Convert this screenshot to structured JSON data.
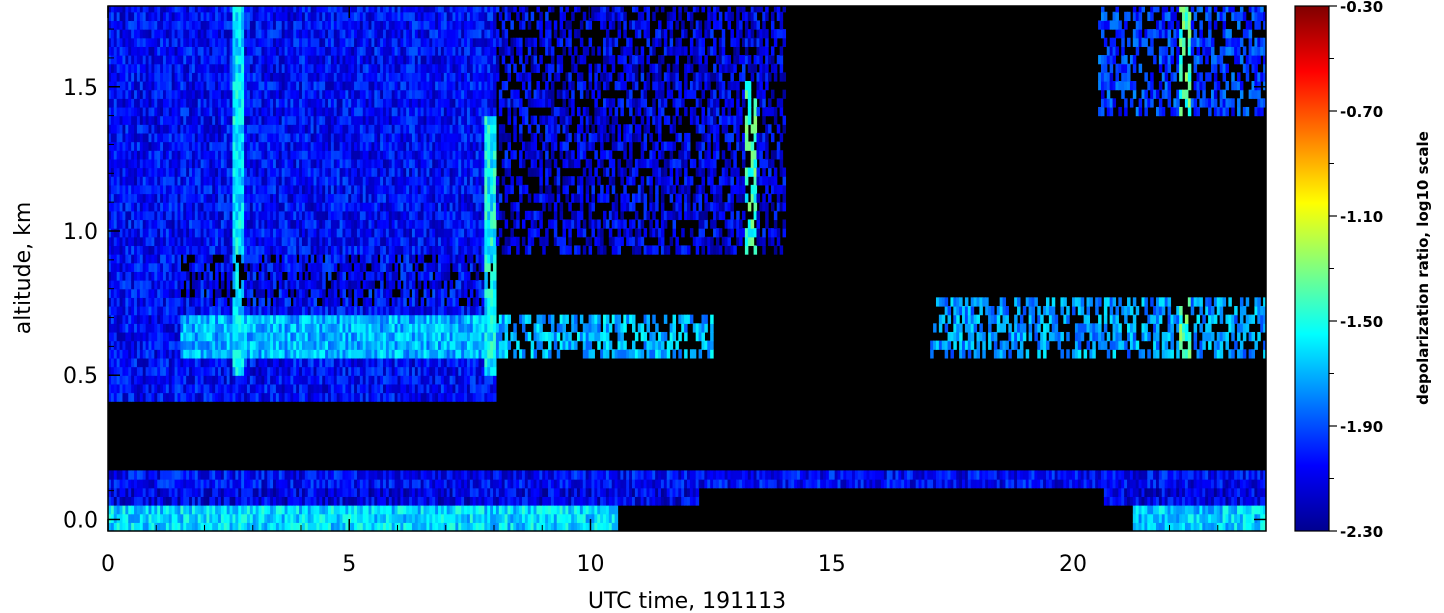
{
  "chart_data": {
    "type": "heatmap",
    "title": "",
    "xlabel": "UTC time, 191113",
    "ylabel": "altitude, km",
    "xlim": [
      0,
      24
    ],
    "ylim": [
      -0.04,
      1.78
    ],
    "x_ticks": [
      0,
      5,
      10,
      15,
      20
    ],
    "x_tick_labels": [
      "0",
      "5",
      "10",
      "15",
      "20"
    ],
    "y_ticks": [
      0.0,
      0.5,
      1.0,
      1.5
    ],
    "y_tick_labels": [
      "0.0",
      "0.5",
      "1.0",
      "1.5"
    ],
    "colorbar": {
      "title": "depolarization ratio, log10 scale",
      "scale": "log10",
      "range": [
        -2.3,
        -0.3
      ],
      "ticks": [
        -0.3,
        -0.7,
        -1.1,
        -1.5,
        -1.9,
        -2.3
      ],
      "tick_labels": [
        "-0.30",
        "-0.70",
        "-1.10",
        "-1.50",
        "-1.90",
        "-2.30"
      ],
      "colormap": "jet"
    },
    "colors": {
      "no_data": "#000000",
      "low": "#0a32e6",
      "mid": "#1e7cf0",
      "high": "#30e0f8"
    },
    "regions": [
      {
        "name": "surface layer",
        "x": [
          0,
          10.5
        ],
        "y": [
          -0.04,
          0.03
        ],
        "value": -1.62
      },
      {
        "name": "surface layer late",
        "x": [
          21.2,
          24
        ],
        "y": [
          -0.04,
          0.03
        ],
        "value": -1.65
      },
      {
        "name": "near-surface band",
        "x": [
          0,
          12.2
        ],
        "y": [
          0.03,
          0.09
        ],
        "value": -2.1
      },
      {
        "name": "near-surface band late",
        "x": [
          20.6,
          24
        ],
        "y": [
          0.03,
          0.09
        ],
        "value": -2.1
      },
      {
        "name": "lower band",
        "x": [
          0,
          24
        ],
        "y": [
          0.09,
          0.15
        ],
        "value": -2.05
      },
      {
        "name": "no-signal gap",
        "x": [
          0,
          24
        ],
        "y": [
          0.15,
          0.4
        ],
        "value": null
      },
      {
        "name": "boundary layer aerosol",
        "x": [
          0,
          8
        ],
        "y": [
          0.4,
          1.78
        ],
        "value": -2.05
      },
      {
        "name": "cloud base layer",
        "x": [
          1.5,
          12.5
        ],
        "y": [
          0.55,
          0.7
        ],
        "value": -1.7
      },
      {
        "name": "upper aerosol",
        "x": [
          8,
          14
        ],
        "y": [
          0.9,
          1.78
        ],
        "value": -2.1
      },
      {
        "name": "cloud layer late",
        "x": [
          17,
          24
        ],
        "y": [
          0.55,
          0.75
        ],
        "value": -1.75
      },
      {
        "name": "upper layer late",
        "x": [
          20.5,
          24
        ],
        "y": [
          1.4,
          1.78
        ],
        "value": -1.95
      }
    ],
    "features": [
      {
        "name": "enhanced column",
        "x": 2.7,
        "y": [
          0.5,
          1.78
        ],
        "value": -1.6
      },
      {
        "name": "enhanced column",
        "x": 7.9,
        "y": [
          0.5,
          1.4
        ],
        "value": -1.55
      },
      {
        "name": "enhanced column",
        "x": 13.3,
        "y": [
          0.55,
          1.52
        ],
        "value": -1.45
      },
      {
        "name": "enhanced column",
        "x": 22.3,
        "y": [
          0.55,
          1.78
        ],
        "value": -1.4
      }
    ]
  }
}
